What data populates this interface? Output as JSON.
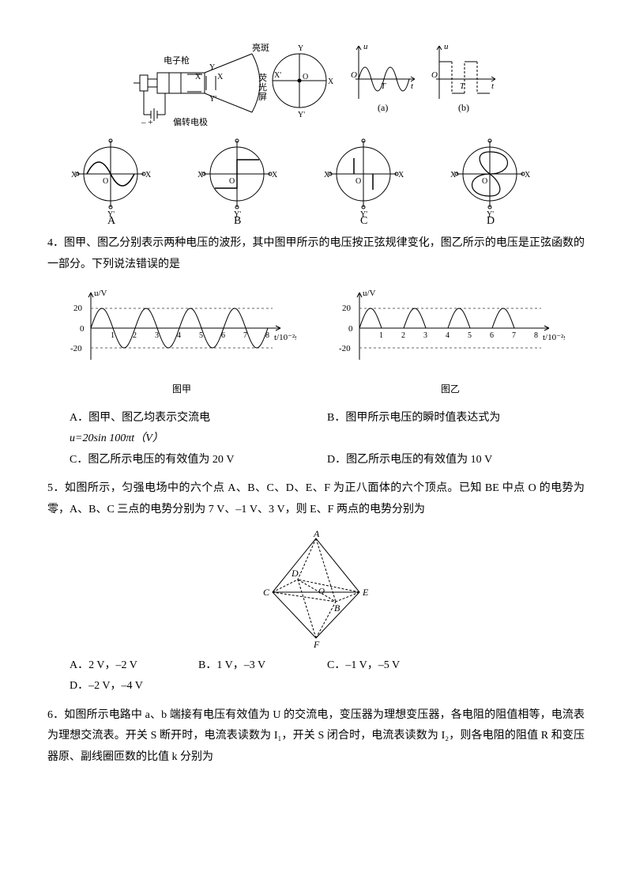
{
  "crt": {
    "labels": {
      "gun": "电子枪",
      "plates": "偏转电极",
      "spot": "亮斑",
      "screen": "荧光屏",
      "X": "X",
      "Xp": "X'",
      "Y": "Y",
      "Yp": "Y'",
      "O": "O",
      "a": "(a)",
      "b": "(b)",
      "u": "u",
      "t": "t",
      "T": "T"
    },
    "choice_labels": [
      "A",
      "B",
      "C",
      "D"
    ]
  },
  "q4": {
    "num": "4．",
    "text": "图甲、图乙分别表示两种电压的波形，其中图甲所示的电压按正弦规律变化，图乙所示的电压是正弦函数的一部分。下列说法错误的是",
    "graph": {
      "ylabel": "u/V",
      "xlabel_a": "t/10⁻²s",
      "xlabel_b": "t/10⁻²s",
      "yticks": [
        "20",
        "0",
        "-20"
      ],
      "xticks": [
        "1",
        "2",
        "3",
        "4",
        "5",
        "6",
        "7",
        "8"
      ],
      "cap_a": "图甲",
      "cap_b": "图乙",
      "amp": 20,
      "periods_a": 4,
      "periods_b": 4,
      "color": "#000000",
      "dash_color": "#666666"
    },
    "opts": {
      "A": "A．图甲、图乙均表示交流电",
      "B": "B．图甲所示电压的瞬时值表达式为",
      "B2": "u=20sin 100πt（V）",
      "C": "C．图乙所示电压的有效值为 20 V",
      "D": "D．图乙所示电压的有效值为 10 V"
    }
  },
  "q5": {
    "num": "5．",
    "text": "如图所示，匀强电场中的六个点 A、B、C、D、E、F 为正八面体的六个顶点。已知 BE 中点 O 的电势为零，A、B、C 三点的电势分别为 7 V、–1 V、3 V，则 E、F 两点的电势分别为",
    "labels": {
      "A": "A",
      "B": "B",
      "C": "C",
      "D": "D",
      "E": "E",
      "F": "F",
      "O": "O"
    },
    "opts": {
      "A": "A．2 V，–2 V",
      "B": "B．1 V，–3 V",
      "C": "C．–1 V，–5 V",
      "D": "D．–2 V，–4 V"
    }
  },
  "q6": {
    "num": "6．",
    "text": "如图所示电路中 a、b 端接有电压有效值为 U 的交流电，变压器为理想变压器，各电阻的阻值相等，电流表为理想交流表。开关 S 断开时，电流表读数为 I₁，开关 S 闭合时，电流表读数为 I₂，则各电阻的阻值 R 和变压器原、副线圈匝数的比值 k 分别为"
  }
}
